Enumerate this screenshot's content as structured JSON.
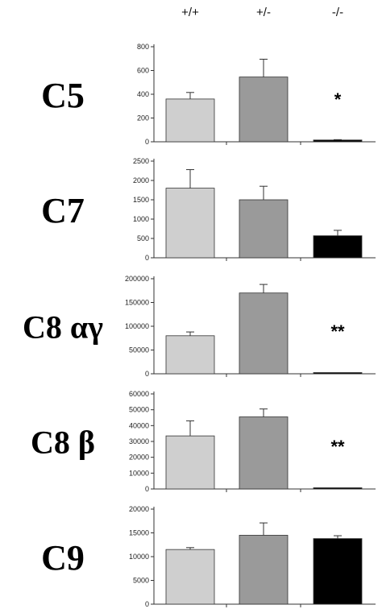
{
  "genotypes": [
    "+/+",
    "+/-",
    "-/-"
  ],
  "colors": {
    "+/+": "#cfcfcf",
    "+/-": "#9a9a9a",
    "-/-": "#000000"
  },
  "chart_data": [
    {
      "type": "bar",
      "title": "C5",
      "categories": [
        "+/+",
        "+/-",
        "-/-"
      ],
      "values": [
        360,
        545,
        15
      ],
      "errors": [
        55,
        150,
        3
      ],
      "ylim": [
        0,
        800
      ],
      "yticks": [
        0,
        200,
        400,
        600,
        800
      ],
      "annotations": [
        "",
        "",
        "*"
      ]
    },
    {
      "type": "bar",
      "title": "C7",
      "categories": [
        "+/+",
        "+/-",
        "-/-"
      ],
      "values": [
        1800,
        1500,
        570
      ],
      "errors": [
        480,
        350,
        140
      ],
      "ylim": [
        0,
        2500
      ],
      "yticks": [
        0,
        500,
        1000,
        1500,
        2000,
        2500
      ],
      "annotations": [
        "",
        "",
        ""
      ]
    },
    {
      "type": "bar",
      "title": "C8 αγ",
      "categories": [
        "+/+",
        "+/-",
        "-/-"
      ],
      "values": [
        80000,
        170000,
        500
      ],
      "errors": [
        8000,
        18000,
        0
      ],
      "ylim": [
        0,
        200000
      ],
      "yticks": [
        0,
        50000,
        100000,
        150000,
        200000
      ],
      "annotations": [
        "",
        "",
        "**"
      ]
    },
    {
      "type": "bar",
      "title": "C8 β",
      "categories": [
        "+/+",
        "+/-",
        "-/-"
      ],
      "values": [
        33500,
        45500,
        300
      ],
      "errors": [
        9500,
        5000,
        0
      ],
      "ylim": [
        0,
        60000
      ],
      "yticks": [
        0,
        10000,
        20000,
        30000,
        40000,
        50000,
        60000
      ],
      "annotations": [
        "",
        "",
        "**"
      ]
    },
    {
      "type": "bar",
      "title": "C9",
      "categories": [
        "+/+",
        "+/-",
        "-/-"
      ],
      "values": [
        11500,
        14500,
        13800
      ],
      "errors": [
        400,
        2600,
        600
      ],
      "ylim": [
        0,
        20000
      ],
      "yticks": [
        0,
        5000,
        10000,
        15000,
        20000
      ],
      "annotations": [
        "",
        "",
        ""
      ]
    }
  ]
}
